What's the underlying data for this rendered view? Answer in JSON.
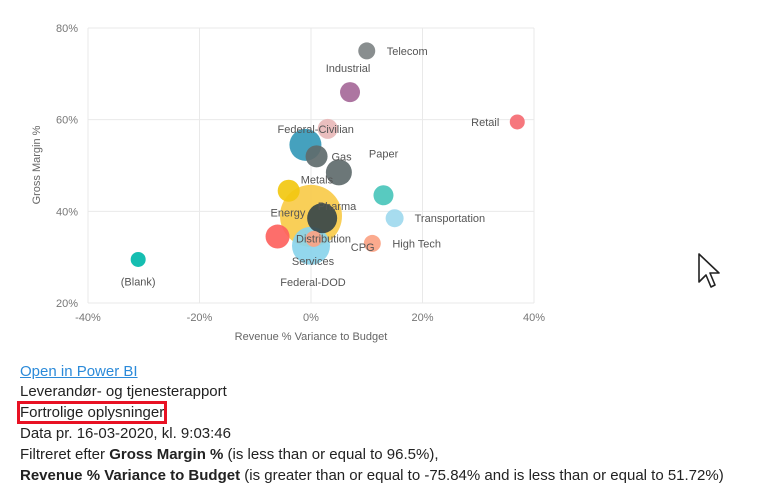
{
  "chart_data": {
    "type": "scatter",
    "title": "",
    "xlabel": "Revenue % Variance to Budget",
    "ylabel": "Gross Margin %",
    "xlim": [
      -40,
      40
    ],
    "ylim": [
      20,
      80
    ],
    "x_ticks": [
      "-40%",
      "-20%",
      "0%",
      "20%",
      "40%"
    ],
    "y_ticks": [
      "20%",
      "40%",
      "60%",
      "80%"
    ],
    "grid": true,
    "points": [
      {
        "name": "Telecom",
        "x": 10,
        "y": 75,
        "size": 17,
        "color": "#7f8486"
      },
      {
        "name": "Industrial",
        "x": 7,
        "y": 66,
        "size": 20,
        "color": "#a66999"
      },
      {
        "name": "Retail",
        "x": 37,
        "y": 59.5,
        "size": 15,
        "color": "#f56b72"
      },
      {
        "name": "Federal-Civilian",
        "x": 3,
        "y": 58,
        "size": 20,
        "color": "#e8b9b9"
      },
      {
        "name": "",
        "x": -1,
        "y": 54.5,
        "size": 32,
        "color": "#3599b8"
      },
      {
        "name": "Gas",
        "x": 1,
        "y": 52,
        "size": 22,
        "color": "#5f6b6d"
      },
      {
        "name": "Paper",
        "x": 5,
        "y": 48.5,
        "size": 26,
        "color": "#5f6b6d"
      },
      {
        "name": "Metals",
        "x": -4,
        "y": 44.5,
        "size": 22,
        "color": "#f2c811"
      },
      {
        "name": "",
        "x": 13,
        "y": 43.5,
        "size": 20,
        "color": "#4ac5bb"
      },
      {
        "name": "Pharma",
        "x": 0,
        "y": 39,
        "size": 62,
        "color": "#f8cb4a"
      },
      {
        "name": "",
        "x": 2,
        "y": 38.5,
        "size": 30,
        "color": "#374649"
      },
      {
        "name": "Transportation",
        "x": 15,
        "y": 38.5,
        "size": 18,
        "color": "#a0d9ee"
      },
      {
        "name": "Energy",
        "x": -6,
        "y": 34.5,
        "size": 24,
        "color": "#fd625e"
      },
      {
        "name": "CPG",
        "x": 0.5,
        "y": 34,
        "size": 16,
        "color": "#fba384"
      },
      {
        "name": "Distribution",
        "x": 0,
        "y": 32.5,
        "size": 38,
        "color": "#8ad4eb"
      },
      {
        "name": "High Tech",
        "x": 11,
        "y": 33,
        "size": 17,
        "color": "#fba384"
      },
      {
        "name": "(Blank)",
        "x": -31,
        "y": 29.5,
        "size": 15,
        "color": "#01b8aa"
      }
    ],
    "extra_labels": [
      "Services",
      "Federal-DOD"
    ]
  },
  "info": {
    "link_text": "Open in Power BI",
    "report_title": "Leverandør- og tjenesterapport",
    "confidential": "Fortrolige oplysninger",
    "data_as_of": "Data pr. 16-03-2020, kl. 9:03:46",
    "filter_prefix": "Filtreret efter ",
    "filter1_field": "Gross Margin %",
    "filter1_condition": " (is less than or equal to 96.5%),",
    "filter2_field": "Revenue % Variance to Budget",
    "filter2_condition": " (is greater than or equal to -75.84% and is less than or equal to 51.72%)"
  },
  "cursor_icon": "mouse-pointer-icon"
}
